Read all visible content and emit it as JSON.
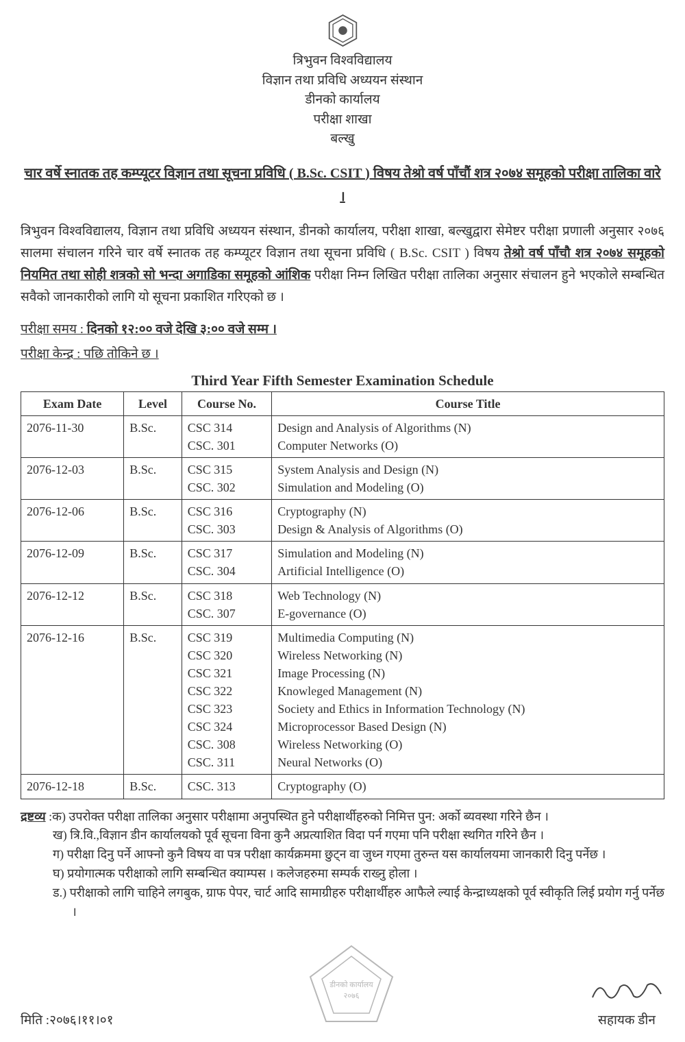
{
  "header": {
    "lines": [
      "त्रिभुवन विश्वविद्यालय",
      "विज्ञान तथा प्रविधि अध्ययन संस्थान",
      "डीनको कार्यालय",
      "परीक्षा शाखा",
      "बल्खु"
    ]
  },
  "subject_title": "चार वर्षे स्नातक तह कम्प्यूटर विज्ञान तथा सूचना प्रविधि ( B.Sc. CSIT ) विषय तेश्रो वर्ष पाँचौं शत्र २०७४ समूहको परीक्षा तालिका वारे ।",
  "intro_para_parts": {
    "p1": "त्रिभुवन विश्वविद्यालय, विज्ञान तथा प्रविधि अध्ययन संस्थान, डीनको कार्यालय, परीक्षा शाखा, बल्खुद्वारा सेमेष्टर परीक्षा प्रणाली अनुसार २०७६ सालमा संचालन गरिने चार वर्षे स्नातक तह कम्प्यूटर विज्ञान तथा सूचना प्रविधि ( B.Sc. CSIT ) विषय ",
    "bold_ul": "तेश्रो वर्ष पाँचौ शत्र २०७४ समूहको नियमित तथा सोही शत्रको सो भन्दा अगाडिका समूहको आंशिक",
    "p2": " परीक्षा निम्न लिखित परीक्षा तालिका अनुसार संचालन हुने भएकोले सम्बन्धित सवैको जानकारीको लागि यो सूचना प्रकाशित गरिएको छ ।"
  },
  "time_line": {
    "label": "परीक्षा समय : ",
    "value": "दिनको १२:०० वजे देखि ३:०० वजे सम्म ।"
  },
  "center_line": {
    "label": "परीक्षा केन्द्र : ",
    "value": "पछि तोकिने छ ।"
  },
  "table": {
    "title": "Third Year Fifth Semester Examination Schedule",
    "columns": [
      "Exam Date",
      "Level",
      "Course No.",
      "Course Title"
    ],
    "col_widths": [
      "16%",
      "9%",
      "14%",
      "61%"
    ],
    "rows": [
      {
        "date": "2076-11-30",
        "level": "B.Sc.",
        "courses": [
          "CSC 314",
          "CSC. 301"
        ],
        "titles": [
          "Design and Analysis of Algorithms (N)",
          "Computer Networks (O)"
        ]
      },
      {
        "date": "2076-12-03",
        "level": "B.Sc.",
        "courses": [
          "CSC 315",
          "CSC. 302"
        ],
        "titles": [
          "System Analysis and Design (N)",
          "Simulation and Modeling (O)"
        ]
      },
      {
        "date": "2076-12-06",
        "level": "B.Sc.",
        "courses": [
          "CSC 316",
          "CSC. 303"
        ],
        "titles": [
          "Cryptography (N)",
          "Design & Analysis of Algorithms (O)"
        ]
      },
      {
        "date": "2076-12-09",
        "level": "B.Sc.",
        "courses": [
          "CSC 317",
          "CSC. 304"
        ],
        "titles": [
          "Simulation and Modeling (N)",
          "Artificial Intelligence (O)"
        ]
      },
      {
        "date": "2076-12-12",
        "level": "B.Sc.",
        "courses": [
          "CSC 318",
          "CSC. 307"
        ],
        "titles": [
          "Web Technology (N)",
          "E-governance (O)"
        ]
      },
      {
        "date": "2076-12-16",
        "level": "B.Sc.",
        "courses": [
          "CSC 319",
          "CSC 320",
          "CSC 321",
          "CSC 322",
          "CSC 323",
          "CSC 324",
          "CSC. 308",
          "CSC. 311"
        ],
        "titles": [
          "Multimedia Computing (N)",
          "Wireless Networking (N)",
          "Image Processing (N)",
          "Knowleged Management (N)",
          "Society and Ethics in Information Technology (N)",
          "Microprocessor Based Design (N)",
          "Wireless Networking (O)",
          "Neural Networks  (O)"
        ]
      },
      {
        "date": "2076-12-18",
        "level": "B.Sc.",
        "courses": [
          "CSC. 313"
        ],
        "titles": [
          "Cryptography (O)"
        ]
      }
    ]
  },
  "notes": {
    "lead": "द्रष्टव्य",
    "items": [
      ":क) उपरोक्त परीक्षा तालिका अनुसार परीक्षामा अनुपस्थित हुने परीक्षार्थीहरुको निमित्त पुन: अर्को ब्यवस्था गरिने छैन ।",
      "ख) त्रि.वि.,विज्ञान डीन कार्यालयको पूर्व सूचना विना कुनै अप्रत्याशित विदा पर्न गएमा पनि परीक्षा स्थगित  गरिने छैन ।",
      "ग) परीक्षा दिनु पर्ने आफ्नो कुनै विषय वा पत्र परीक्षा कार्यक्रममा छुट्न वा जुध्न गएमा तुरुन्त यस कार्यालयमा जानकारी दिनु पर्नेछ ।",
      "घ) प्रयोगात्मक परीक्षाको लागि सम्बन्धित क्याम्पस । कलेजहरुमा सम्पर्क राख्नु होला ।",
      "ड.) परीक्षाको लागि चाहिने लगबुक, ग्राफ पेपर, चार्ट आदि सामाग्रीहरु परीक्षार्थीहरु आफैले ल्याई केन्द्राध्यक्षको पूर्व स्वीकृति लिई प्रयोग गर्नु पर्नेछ ।"
    ]
  },
  "footer": {
    "date": "मिति :२०७६।११।०१",
    "stamp_lines": [
      "डीनको कार्यालय",
      "२०७६"
    ],
    "signature_role": "सहायक डीन"
  }
}
